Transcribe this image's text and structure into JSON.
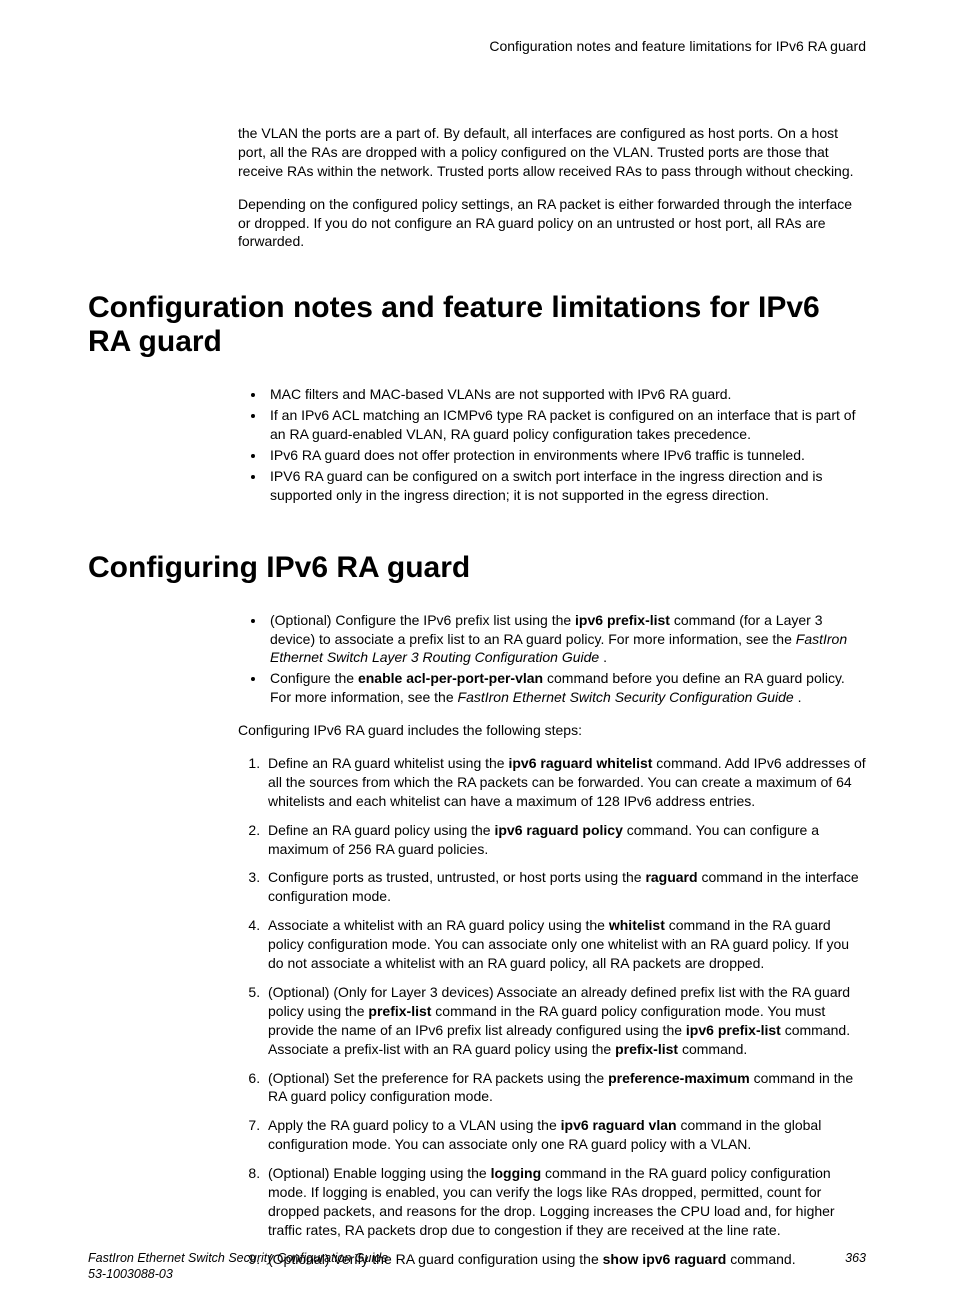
{
  "header": {
    "running": "Configuration notes and feature limitations for IPv6 RA guard"
  },
  "intro": {
    "p1": "the VLAN the ports are a part of. By default, all interfaces are configured as host ports. On a host port, all the RAs are dropped with a policy configured on the VLAN. Trusted ports are those that receive RAs within the network. Trusted ports allow received RAs to pass through without checking.",
    "p2": "Depending on the configured policy settings, an RA packet is either forwarded through the interface or dropped. If you do not configure an RA guard policy on an untrusted or host port, all RAs are forwarded."
  },
  "sections": {
    "notes_title": "Configuration notes and feature limitations for IPv6 RA guard",
    "notes_bullets": [
      "MAC filters and MAC-based VLANs are not supported with IPv6 RA guard.",
      "If an IPv6 ACL matching an ICMPv6 type RA packet is configured on an interface that is part of an RA guard-enabled VLAN, RA guard policy configuration takes precedence.",
      "IPv6 RA guard does not offer protection in environments where IPv6 traffic is tunneled.",
      "IPV6 RA guard can be configured on a switch port interface in the ingress direction and is supported only in the ingress direction; it is not supported in the egress direction."
    ],
    "config_title": "Configuring IPv6 RA guard",
    "config_bullets": [
      "(Optional) Configure the IPv6 prefix list using the <b>ipv6 prefix-list</b> command (for a Layer 3 device) to associate a prefix list to an RA guard policy. For more information, see the <i>FastIron Ethernet Switch Layer 3 Routing Configuration Guide</i> .",
      "Configure the <b>enable acl-per-port-per-vlan</b> command before you define an RA guard policy. For more information, see the <i>FastIron Ethernet Switch Security Configuration Guide</i> ."
    ],
    "config_intro": "Configuring IPv6 RA guard includes the following steps:",
    "config_steps": [
      "Define an RA guard whitelist using the <b>ipv6 raguard whitelist</b> command. Add IPv6 addresses of all the sources from which the RA packets can be forwarded. You can create a maximum of 64 whitelists and each whitelist can have a maximum of 128 IPv6 address entries.",
      "Define an RA guard policy using the <b>ipv6 raguard policy</b> command. You can configure a maximum of 256 RA guard policies.",
      "Configure ports as trusted, untrusted, or host ports using the <b>raguard</b> command in the interface configuration mode.",
      "Associate a whitelist with an RA guard policy using the <b>whitelist</b> command in the RA guard policy configuration mode. You can associate only one whitelist with an RA guard policy. If you do not associate a whitelist with an RA guard policy, all RA packets are dropped.",
      "(Optional) (Only for Layer 3 devices) Associate an already defined prefix list with the RA guard policy using the <b>prefix-list</b> command in the RA guard policy configuration mode. You must provide the name of an IPv6 prefix list already configured using the <b>ipv6 prefix-list</b> command. Associate a prefix-list with an RA guard policy using the <b>prefix-list</b> command.",
      "(Optional) Set the preference for RA packets using the <b>preference-maximum</b> command in the RA guard policy configuration mode.",
      "Apply the RA guard policy to a VLAN using the <b>ipv6 raguard vlan</b> command in the global configuration mode. You can associate only one RA guard policy with a VLAN.",
      "(Optional) Enable logging using the <b>logging</b> command in the RA guard policy configuration mode. If logging is enabled, you can verify the logs like RAs dropped, permitted, count for dropped packets, and reasons for the drop. Logging increases the CPU load and, for higher traffic rates, RA packets drop due to congestion if they are received at the line rate.",
      "(Optional) Verify the RA guard configuration using the <b>show ipv6 raguard</b> command."
    ]
  },
  "footer": {
    "guide": "FastIron Ethernet Switch Security Configuration Guide",
    "docnum": "53-1003088-03",
    "pagenum": "363"
  }
}
